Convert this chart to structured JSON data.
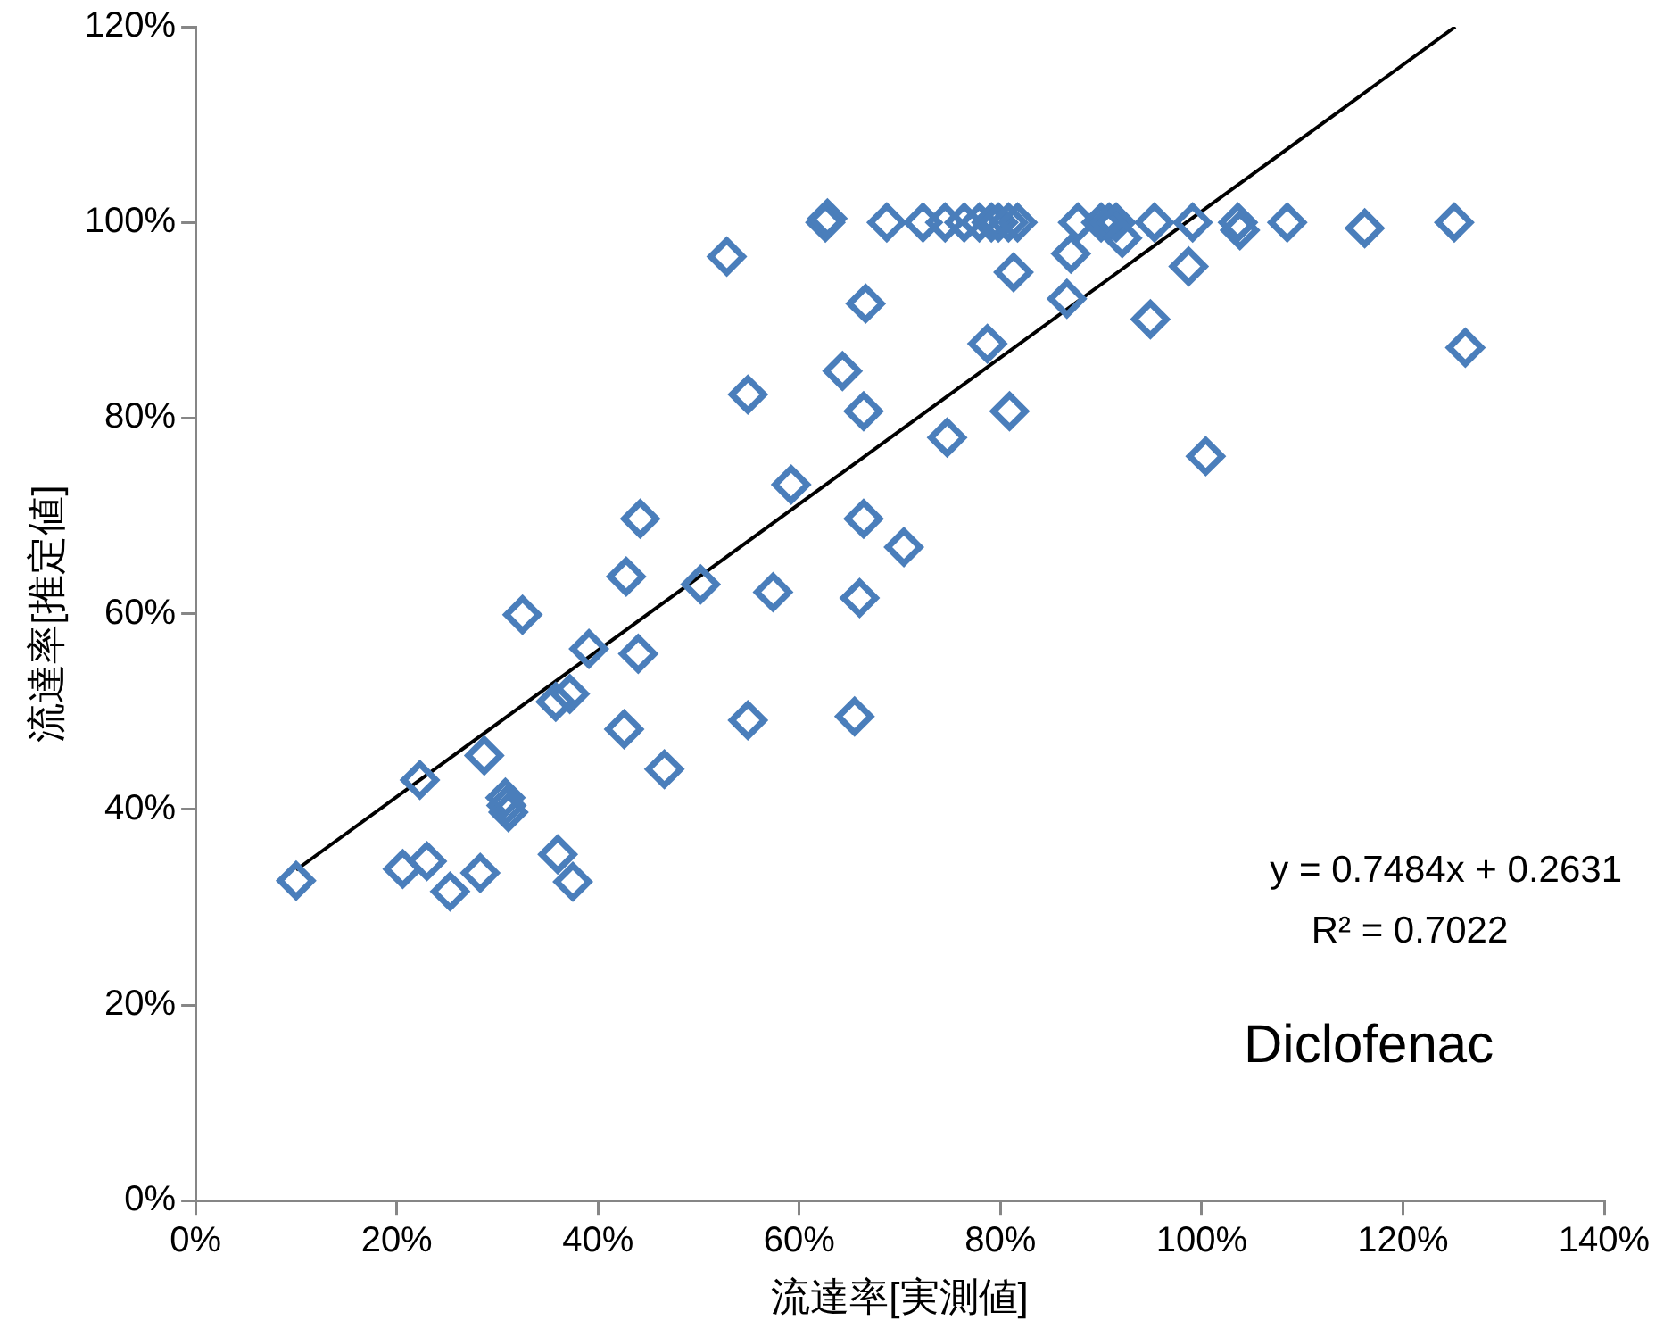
{
  "chart_data": {
    "type": "scatter",
    "xlabel": "流達率[実測値]",
    "ylabel": "流達率[推定値]",
    "xlim": [
      0,
      140
    ],
    "xticks": [
      {
        "value": 0,
        "label": "0%"
      },
      {
        "value": 20,
        "label": "20%"
      },
      {
        "value": 40,
        "label": "40%"
      },
      {
        "value": 60,
        "label": "60%"
      },
      {
        "value": 80,
        "label": "80%"
      },
      {
        "value": 100,
        "label": "100%"
      },
      {
        "value": 120,
        "label": "120%"
      },
      {
        "value": 140,
        "label": "140%"
      }
    ],
    "ylim": [
      0,
      120
    ],
    "yticks": [
      {
        "value": 0,
        "label": "0%"
      },
      {
        "value": 20,
        "label": "20%"
      },
      {
        "value": 40,
        "label": "40%"
      },
      {
        "value": 60,
        "label": "60%"
      },
      {
        "value": 80,
        "label": "80%"
      },
      {
        "value": 100,
        "label": "100%"
      },
      {
        "value": 120,
        "label": "120%"
      }
    ],
    "grid": false,
    "legend": false,
    "marker": "diamond",
    "series": [
      {
        "type": "scatter",
        "color": "#4a7ebb",
        "x": [
          10.0,
          20.6,
          23.0,
          25.3,
          28.3,
          22.3,
          28.7,
          30.8,
          31.1,
          30.9,
          32.5,
          36.0,
          37.5,
          35.8,
          37.2,
          39.1,
          42.6,
          42.8,
          44.0,
          44.2,
          46.6,
          50.2,
          54.9,
          54.9,
          52.8,
          57.4,
          59.2,
          62.6,
          62.8,
          64.3,
          65.5,
          66.0,
          66.4,
          66.4,
          66.6,
          68.7,
          70.4,
          72.3,
          74.7,
          74.5,
          76.4,
          77.9,
          79.1,
          79.8,
          80.8,
          81.7,
          78.7,
          81.3,
          80.9,
          86.6,
          87.0,
          87.7,
          90.0,
          90.8,
          91.5,
          92.1,
          94.9,
          95.3,
          98.7,
          99.1,
          100.4,
          103.6,
          103.8,
          108.5,
          116.2,
          125.1,
          126.2
        ],
        "values": [
          32.7,
          33.9,
          34.7,
          31.6,
          33.5,
          43.0,
          45.5,
          41.2,
          39.7,
          40.4,
          59.9,
          35.4,
          32.6,
          51.0,
          51.8,
          56.4,
          48.2,
          63.8,
          55.9,
          69.7,
          44.1,
          63.0,
          49.1,
          82.4,
          96.5,
          62.2,
          73.2,
          100.0,
          100.4,
          84.8,
          49.5,
          61.6,
          80.7,
          69.7,
          91.7,
          100,
          66.8,
          100,
          78.0,
          100,
          100,
          100,
          100,
          100,
          100,
          100,
          87.6,
          94.9,
          80.7,
          92.2,
          96.8,
          100,
          100,
          100,
          100,
          98.4,
          90.1,
          100,
          95.5,
          100,
          76.1,
          100,
          99.2,
          100,
          99.4,
          100,
          87.2
        ]
      },
      {
        "type": "line",
        "color": "#000000",
        "marker": "none",
        "line_style": "solid",
        "x": [
          10.0,
          125.2
        ],
        "values": [
          33.8,
          120.0
        ]
      }
    ],
    "annotations": [
      "y = 0.7484x + 0.2631",
      "R² = 0.7022",
      "Diclofenac"
    ]
  }
}
